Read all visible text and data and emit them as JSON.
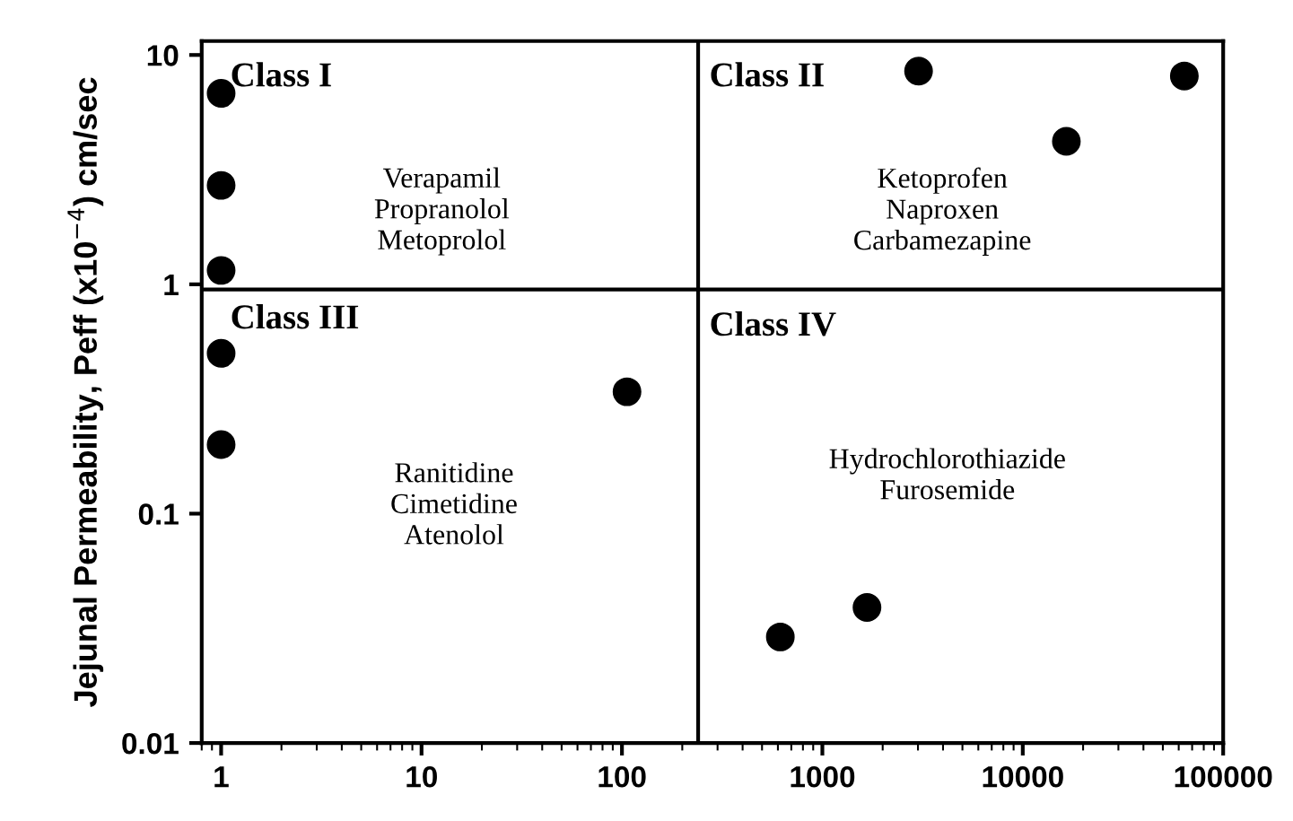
{
  "chart_data": {
    "type": "scatter",
    "ylabel": "Jejunal Permeability, Peff (x10$^{−4}$) cm/sec",
    "x": [
      1,
      1,
      1,
      3020,
      64000,
      16500,
      1,
      1,
      106,
      617,
      1670
    ],
    "series": [
      {
        "color": "#000000",
        "values": [
          6.8,
          2.7,
          1.15,
          8.5,
          8.1,
          4.2,
          0.5,
          0.2,
          0.34,
          0.029,
          0.039
        ]
      }
    ],
    "log": "xy",
    "xlim": [
      0.8,
      100000
    ],
    "ylim": [
      0.01,
      11.5
    ],
    "xticks": [
      1,
      10,
      100,
      1000,
      10000,
      100000
    ],
    "yticks": [
      0.01,
      0.1,
      1,
      10
    ],
    "marker": "circle",
    "grid": false,
    "legend": false,
    "ref_lines": [
      {
        "axis": "x",
        "value": 240,
        "color": "#000000"
      },
      {
        "axis": "y",
        "value": 0.95,
        "color": "#000000"
      }
    ],
    "annotations": [
      "Class I",
      "Class II",
      "Class III",
      "Class IV",
      "Verapamil\nPropranolol\nMetoprolol",
      "Ketoprofen\nNaproxen\nCarbamezapine",
      "Ranitidine\nCimetidine\nAtenolol",
      "Hydrochlorothiazide\nFurosemide"
    ]
  }
}
